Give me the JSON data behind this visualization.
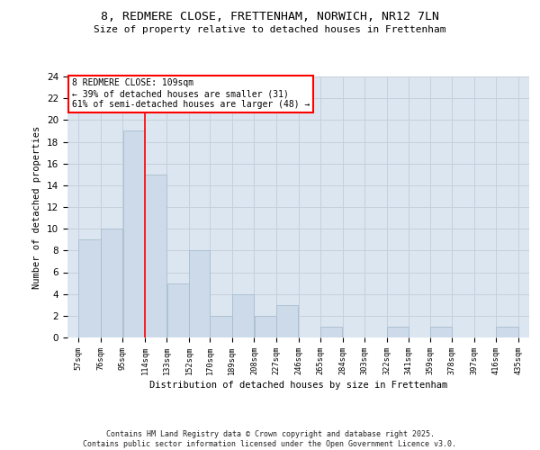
{
  "title_line1": "8, REDMERE CLOSE, FRETTENHAM, NORWICH, NR12 7LN",
  "title_line2": "Size of property relative to detached houses in Frettenham",
  "xlabel": "Distribution of detached houses by size in Frettenham",
  "ylabel": "Number of detached properties",
  "bar_color": "#ccdaea",
  "bar_edgecolor": "#a8bece",
  "grid_color": "#c5d0dc",
  "background_color": "#dce6f0",
  "annotation_text": "8 REDMERE CLOSE: 109sqm\n← 39% of detached houses are smaller (31)\n61% of semi-detached houses are larger (48) →",
  "annotation_box_color": "white",
  "annotation_box_edgecolor": "red",
  "footer_text": "Contains HM Land Registry data © Crown copyright and database right 2025.\nContains public sector information licensed under the Open Government Licence v3.0.",
  "bins": [
    57,
    76,
    95,
    114,
    133,
    152,
    170,
    189,
    208,
    227,
    246,
    265,
    284,
    303,
    322,
    341,
    359,
    378,
    397,
    416,
    435
  ],
  "values": [
    9,
    10,
    19,
    15,
    5,
    8,
    2,
    4,
    2,
    3,
    0,
    1,
    0,
    0,
    1,
    0,
    1,
    0,
    0,
    1
  ],
  "ylim": [
    0,
    24
  ],
  "yticks": [
    0,
    2,
    4,
    6,
    8,
    10,
    12,
    14,
    16,
    18,
    20,
    22,
    24
  ],
  "red_line_x": 114
}
